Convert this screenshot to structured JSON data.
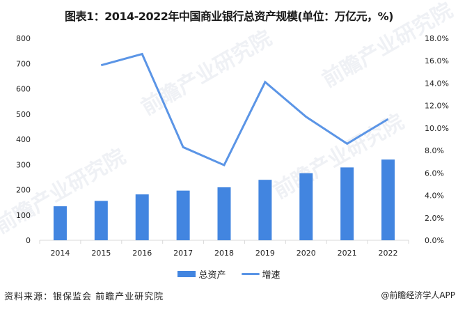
{
  "title": "图表1：2014-2022年中国商业银行总资产规模(单位：万亿元，%)",
  "legend": {
    "bar_label": "总资产",
    "line_label": "增速"
  },
  "footer": {
    "source": "资料来源：银保监会 前瞻产业研究院",
    "credit": "@前瞻经济学人APP"
  },
  "watermark": "前瞻产业研究院",
  "colors": {
    "bar": "#4285e0",
    "line": "#5b95e6",
    "axis": "#d9d9d9"
  },
  "axes": {
    "left_ticks": [
      "0",
      "100",
      "200",
      "300",
      "400",
      "500",
      "600",
      "700",
      "800"
    ],
    "right_ticks": [
      "0.0%",
      "2.0%",
      "4.0%",
      "6.0%",
      "8.0%",
      "10.0%",
      "12.0%",
      "14.0%",
      "16.0%",
      "18.0%"
    ],
    "x_ticks": [
      "2014",
      "2015",
      "2016",
      "2017",
      "2018",
      "2019",
      "2020",
      "2021",
      "2022"
    ]
  },
  "chart_data": {
    "type": "bar",
    "title": "图表1：2014-2022年中国商业银行总资产规模(单位：万亿元，%)",
    "categories": [
      "2014",
      "2015",
      "2016",
      "2017",
      "2018",
      "2019",
      "2020",
      "2021",
      "2022"
    ],
    "series": [
      {
        "name": "总资产",
        "type": "bar",
        "axis": "left",
        "values": [
          134.8,
          155.8,
          181.7,
          196.8,
          209.96,
          239.5,
          265.8,
          288.6,
          319.8
        ]
      },
      {
        "name": "增速",
        "type": "line",
        "axis": "right",
        "unit": "%",
        "values": [
          null,
          15.6,
          16.6,
          8.3,
          6.7,
          14.1,
          11.0,
          8.6,
          10.8
        ]
      }
    ],
    "xlabel": "",
    "ylabel": "万亿元",
    "y2label": "%",
    "ylim": [
      0,
      800
    ],
    "y2lim": [
      0,
      18
    ],
    "grid": false,
    "legend_position": "bottom"
  }
}
